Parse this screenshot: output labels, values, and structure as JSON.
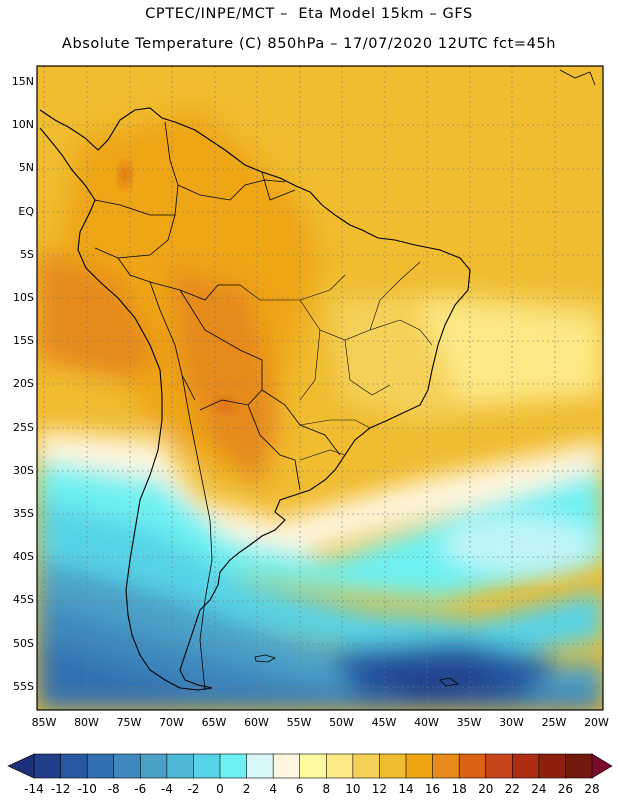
{
  "header": {
    "line1": "CPTEC/INPE/MCT –  Eta Model 15km – GFS",
    "line2": "Absolute Temperature (C) 850hPa – 17/07/2020 12UTC fct=45h"
  },
  "map": {
    "lat_labels": [
      "15N",
      "10N",
      "5N",
      "EQ",
      "5S",
      "10S",
      "15S",
      "20S",
      "25S",
      "30S",
      "35S",
      "40S",
      "45S",
      "50S",
      "55S"
    ],
    "lon_labels": [
      "85W",
      "80W",
      "75W",
      "70W",
      "65W",
      "60W",
      "55W",
      "50W",
      "45W",
      "40W",
      "35W",
      "30W",
      "25W",
      "20W"
    ]
  },
  "colorbar": {
    "labels": [
      "-14",
      "-12",
      "-10",
      "-8",
      "-6",
      "-4",
      "-2",
      "0",
      "2",
      "4",
      "6",
      "8",
      "10",
      "12",
      "14",
      "16",
      "18",
      "20",
      "22",
      "24",
      "26",
      "28"
    ],
    "colors": [
      "#203f8a",
      "#2858a0",
      "#3171b1",
      "#3d88bd",
      "#4ba0c8",
      "#4eb8d8",
      "#56d2e6",
      "#6ef0f2",
      "#d6f6fa",
      "#fff6e0",
      "#fff9a0",
      "#fde986",
      "#f5d15a",
      "#f0bc30",
      "#eea513",
      "#e68a1a",
      "#d96215",
      "#c7451a",
      "#ad2d13",
      "#90200e",
      "#721a0f"
    ],
    "left_tip_color": "#1c2f78",
    "right_tip_color": "#7a0a2a"
  }
}
